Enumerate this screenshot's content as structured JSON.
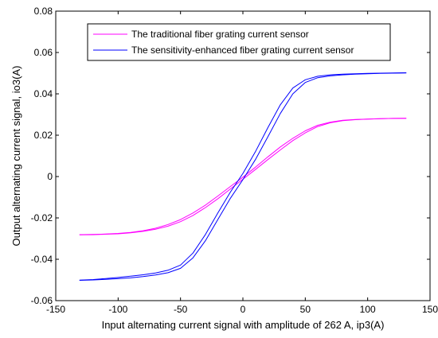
{
  "chart_data": {
    "type": "line",
    "title": "",
    "xlabel": "Input alternating current signal with amplitude of 262 A, ip3(A)",
    "ylabel": "Output alternating current signal, io3(A)",
    "xlim": [
      -150,
      150
    ],
    "ylim": [
      -0.06,
      0.08
    ],
    "xticks": [
      -150,
      -100,
      -50,
      0,
      50,
      100,
      150
    ],
    "xtick_labels": [
      "-150",
      "-100",
      "-50",
      "0",
      "50",
      "100",
      "150"
    ],
    "yticks": [
      -0.06,
      -0.04,
      -0.02,
      0,
      0.02,
      0.04,
      0.06,
      0.08
    ],
    "ytick_labels": [
      "-0.06",
      "-0.04",
      "-0.02",
      "0",
      "0.02",
      "0.04",
      "0.06",
      "0.08"
    ],
    "grid": false,
    "legend_position": "top-center",
    "x": [
      -131,
      -120,
      -110,
      -100,
      -90,
      -80,
      -70,
      -60,
      -50,
      -40,
      -30,
      -20,
      -10,
      0,
      10,
      20,
      30,
      40,
      50,
      60,
      70,
      80,
      90,
      100,
      110,
      120,
      131
    ],
    "series": [
      {
        "name": "The traditional fiber grating current sensor",
        "color": "#ff00ff",
        "upper": [
          -0.0281,
          -0.028,
          -0.0278,
          -0.0275,
          -0.027,
          -0.0262,
          -0.025,
          -0.0232,
          -0.0208,
          -0.0176,
          -0.0138,
          -0.0094,
          -0.0048,
          -0.0003,
          0.0045,
          0.0095,
          0.0143,
          0.0185,
          0.0221,
          0.0248,
          0.0263,
          0.0272,
          0.0276,
          0.0278,
          0.028,
          0.0281,
          0.0282
        ],
        "lower": [
          -0.0282,
          -0.0281,
          -0.0279,
          -0.0277,
          -0.0272,
          -0.0265,
          -0.0255,
          -0.024,
          -0.0218,
          -0.0188,
          -0.015,
          -0.0107,
          -0.006,
          -0.0013,
          0.0034,
          0.0082,
          0.0129,
          0.0174,
          0.0211,
          0.0242,
          0.026,
          0.027,
          0.0275,
          0.0278,
          0.028,
          0.0281,
          0.0282
        ]
      },
      {
        "name": "The sensitivity-enhanced fiber grating current sensor",
        "color": "#0000ff",
        "upper": [
          -0.0501,
          -0.0498,
          -0.0493,
          -0.0488,
          -0.0482,
          -0.0475,
          -0.0466,
          -0.0453,
          -0.0428,
          -0.037,
          -0.028,
          -0.0175,
          -0.0075,
          0.0015,
          0.012,
          0.0236,
          0.0347,
          0.0428,
          0.0468,
          0.0485,
          0.0492,
          0.0495,
          0.0497,
          0.0499,
          0.05,
          0.0501,
          0.0502
        ],
        "lower": [
          -0.0502,
          -0.05,
          -0.0497,
          -0.0494,
          -0.049,
          -0.0484,
          -0.0476,
          -0.0465,
          -0.0444,
          -0.0393,
          -0.031,
          -0.0207,
          -0.0105,
          -0.0015,
          0.0082,
          0.0192,
          0.0305,
          0.04,
          0.0455,
          0.0478,
          0.0487,
          0.0492,
          0.0495,
          0.0497,
          0.0499,
          0.05,
          0.0501
        ]
      }
    ]
  }
}
